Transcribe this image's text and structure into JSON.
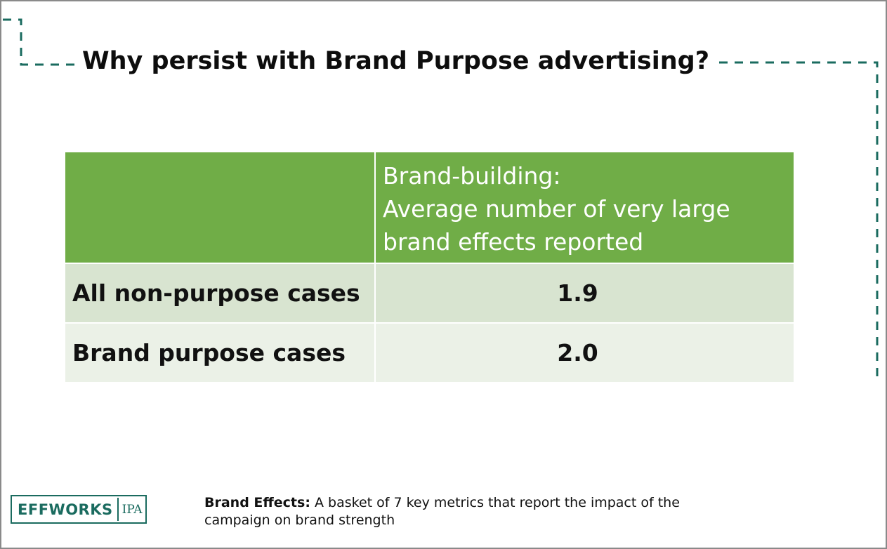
{
  "slide": {
    "title": "Why persist with Brand Purpose advertising?"
  },
  "table": {
    "header_lines": [
      "Brand-building:",
      "Average number of very large",
      "brand effects reported"
    ],
    "rows": [
      {
        "label": "All non-purpose cases",
        "value": "1.9"
      },
      {
        "label": "Brand purpose cases",
        "value": "2.0"
      }
    ]
  },
  "logo": {
    "main": "EFFWORKS",
    "sub": "IPA"
  },
  "footnote": {
    "term": "Brand Effects:",
    "text": " A basket of 7 key metrics that report the impact of the campaign on brand strength"
  },
  "colors": {
    "header_green": "#70ad47",
    "row_light_1": "#d8e4d0",
    "row_light_2": "#ebf1e7",
    "accent_teal": "#1a6b5f"
  }
}
